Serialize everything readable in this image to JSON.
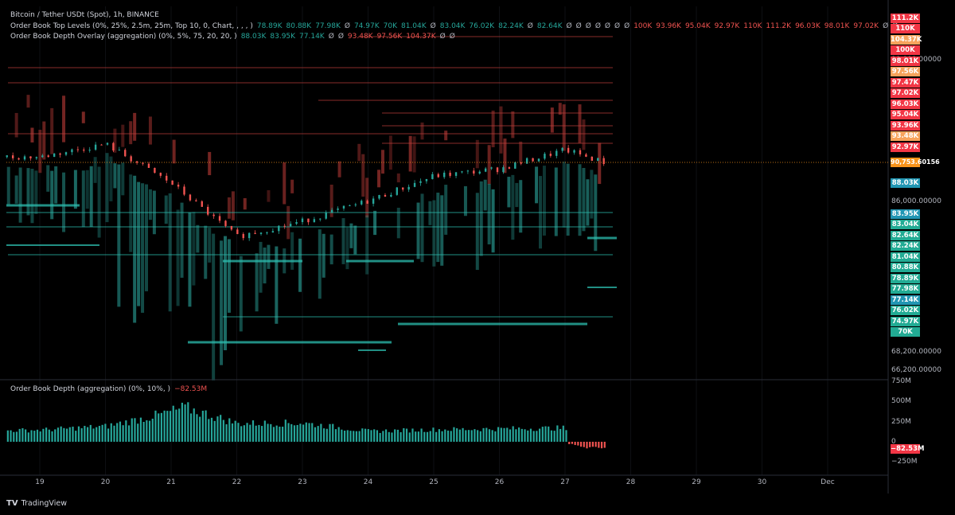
{
  "header": {
    "symbol_title": "Bitcoin / Tether USDt (Spot), 1h, BINANCE",
    "top_levels_label": "Order Book Top Levels (0%, 25%, 2.5m, 25m, Top 10, 0, Chart, , , , )",
    "top_levels_values": [
      {
        "text": "78.89K",
        "side": "pos"
      },
      {
        "text": "80.88K",
        "side": "pos"
      },
      {
        "text": "77.98K",
        "side": "pos"
      },
      {
        "text": "Ø",
        "side": "dim"
      },
      {
        "text": "74.97K",
        "side": "pos"
      },
      {
        "text": "70K",
        "side": "pos"
      },
      {
        "text": "81.04K",
        "side": "pos"
      },
      {
        "text": "Ø",
        "side": "dim"
      },
      {
        "text": "83.04K",
        "side": "pos"
      },
      {
        "text": "76.02K",
        "side": "pos"
      },
      {
        "text": "82.24K",
        "side": "pos"
      },
      {
        "text": "Ø",
        "side": "dim"
      },
      {
        "text": "82.64K",
        "side": "pos"
      },
      {
        "text": "Ø",
        "side": "dim"
      },
      {
        "text": "Ø",
        "side": "dim"
      },
      {
        "text": "Ø",
        "side": "dim"
      },
      {
        "text": "Ø",
        "side": "dim"
      },
      {
        "text": "Ø",
        "side": "dim"
      },
      {
        "text": "Ø",
        "side": "dim"
      },
      {
        "text": "Ø",
        "side": "dim"
      },
      {
        "text": "100K",
        "side": "neg"
      },
      {
        "text": "93.96K",
        "side": "neg"
      },
      {
        "text": "95.04K",
        "side": "neg"
      },
      {
        "text": "92.97K",
        "side": "neg"
      },
      {
        "text": "110K",
        "side": "neg"
      },
      {
        "text": "111.2K",
        "side": "neg"
      },
      {
        "text": "96.03K",
        "side": "neg"
      },
      {
        "text": "98.01K",
        "side": "neg"
      },
      {
        "text": "97.02K",
        "side": "neg"
      },
      {
        "text": "Ø",
        "side": "dim"
      },
      {
        "text": "Ø",
        "side": "dim"
      },
      {
        "text": "···",
        "side": "dim"
      }
    ],
    "overlay_label": "Order Book Depth Overlay (aggregation) (0%, 5%, 75, 20, 20, )",
    "overlay_values": [
      {
        "text": "88.03K",
        "side": "pos"
      },
      {
        "text": "83.95K",
        "side": "pos"
      },
      {
        "text": "77.14K",
        "side": "pos"
      },
      {
        "text": "Ø",
        "side": "dim"
      },
      {
        "text": "Ø",
        "side": "dim"
      },
      {
        "text": "93.48K",
        "side": "neg"
      },
      {
        "text": "97.56K",
        "side": "neg"
      },
      {
        "text": "104.37K",
        "side": "neg"
      },
      {
        "text": "Ø",
        "side": "dim"
      },
      {
        "text": "Ø",
        "side": "dim"
      }
    ],
    "depth_label": "Order Book Depth (aggregation) (0%, 10%, )",
    "depth_value": "−82.53M"
  },
  "colors": {
    "bull": "#26a69a",
    "bear": "#ef5350",
    "ask_label": "#f23645",
    "orange": "#f7a35c",
    "teal_label": "#22ab94",
    "blue_label": "#2196b3",
    "price_line": "#f7931a"
  },
  "price_axis": {
    "ticks": [
      "90,000.00000",
      "86,000.00000",
      "68,200.00000",
      "66,200.00000"
    ],
    "current_price": "90,753.60156"
  },
  "level_labels": [
    {
      "text": "111.2K",
      "kind": "ask",
      "price": 111200
    },
    {
      "text": "110K",
      "kind": "ask",
      "price": 110000
    },
    {
      "text": "104.37K",
      "kind": "orange",
      "price": 104370
    },
    {
      "text": "100K",
      "kind": "ask",
      "price": 100000
    },
    {
      "text": "98.01K",
      "kind": "ask",
      "price": 98010
    },
    {
      "text": "97.56K",
      "kind": "orange",
      "price": 97560
    },
    {
      "text": "97.47K",
      "kind": "ask",
      "price": 97470
    },
    {
      "text": "97.02K",
      "kind": "ask",
      "price": 97020
    },
    {
      "text": "96.03K",
      "kind": "ask",
      "price": 96030
    },
    {
      "text": "95.04K",
      "kind": "ask",
      "price": 95040
    },
    {
      "text": "93.96K",
      "kind": "ask",
      "price": 93960
    },
    {
      "text": "93.48K",
      "kind": "orange",
      "price": 93480
    },
    {
      "text": "92.97K",
      "kind": "ask",
      "price": 92970
    },
    {
      "text": "88.03K",
      "kind": "blue",
      "price": 88030
    },
    {
      "text": "83.95K",
      "kind": "blue",
      "price": 83950
    },
    {
      "text": "83.04K",
      "kind": "bid",
      "price": 83040
    },
    {
      "text": "82.64K",
      "kind": "bid",
      "price": 82640
    },
    {
      "text": "82.24K",
      "kind": "bid",
      "price": 82240
    },
    {
      "text": "81.04K",
      "kind": "bid",
      "price": 81040
    },
    {
      "text": "80.88K",
      "kind": "bid",
      "price": 80880
    },
    {
      "text": "78.89K",
      "kind": "bid",
      "price": 78890
    },
    {
      "text": "77.98K",
      "kind": "bid",
      "price": 77980
    },
    {
      "text": "77.14K",
      "kind": "blue",
      "price": 77140
    },
    {
      "text": "76.02K",
      "kind": "bid",
      "price": 76020
    },
    {
      "text": "74.97K",
      "kind": "bid",
      "price": 74970
    },
    {
      "text": "70K",
      "kind": "bid",
      "price": 70000
    }
  ],
  "depth_axis": {
    "ticks": [
      "750M",
      "500M",
      "250M",
      "0",
      "−250M"
    ],
    "current": "−82.53M"
  },
  "time_axis": [
    "19",
    "20",
    "21",
    "22",
    "23",
    "24",
    "25",
    "26",
    "27",
    "28",
    "29",
    "30",
    "Dec"
  ],
  "brand": {
    "name": "TradingView"
  },
  "chart_data": {
    "type": "line",
    "title": "Bitcoin / Tether USDt (Spot), 1h, BINANCE",
    "x": [
      "19",
      "20",
      "21",
      "22",
      "23",
      "24",
      "25",
      "26",
      "27",
      "27.6"
    ],
    "series": [
      {
        "values": [
          91200,
          92300,
          89000,
          84500,
          85800,
          87500,
          89600,
          90200,
          91800,
          90750
        ]
      }
    ],
    "depth_series": {
      "name": "Order Book Depth",
      "values": [
        140,
        145,
        190,
        330,
        420,
        225,
        230,
        130,
        150,
        170,
        -25,
        -70,
        -82.5
      ],
      "unit": "M"
    },
    "ylim": [
      66200,
      112000
    ]
  }
}
